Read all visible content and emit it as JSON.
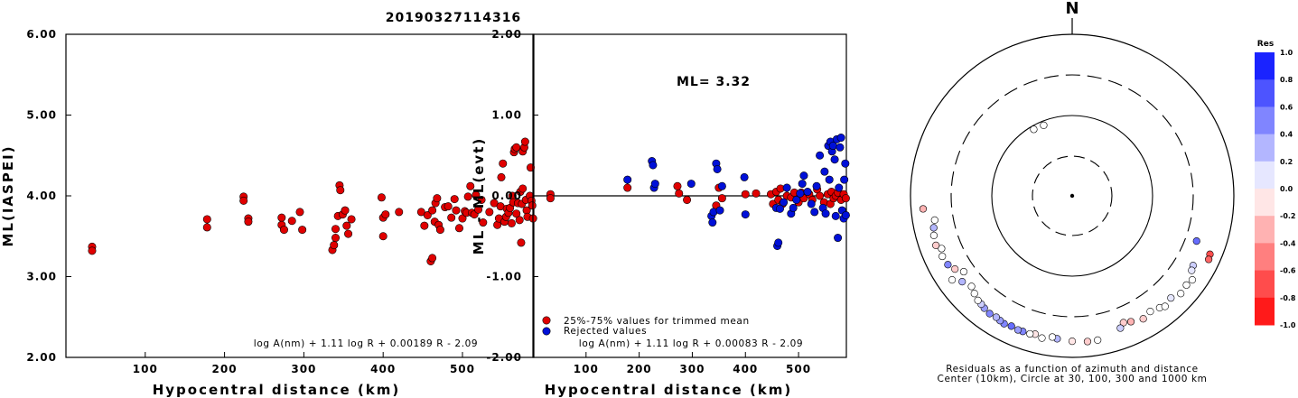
{
  "title": "20190327114316",
  "colors": {
    "accepted": "#e00000",
    "rejected": "#0010d8",
    "axis": "#000000"
  },
  "chart_data": [
    {
      "type": "scatter",
      "xlabel": "Hypocentral distance (km)",
      "ylabel": "ML(IASPEI)",
      "xlim": [
        0,
        590
      ],
      "ylim": [
        2.0,
        6.0
      ],
      "x_ticks": [
        100,
        200,
        300,
        400,
        500
      ],
      "x_tick_labels": [
        "100",
        "200",
        "300",
        "400",
        "500"
      ],
      "y_ticks": [
        2,
        3,
        4,
        5,
        6
      ],
      "y_tick_labels": [
        "2.00",
        "3.00",
        "4.00",
        "5.00",
        "6.00"
      ],
      "formula": "log A(nm) + 1.11 log R + 0.00189 R - 2.09",
      "series": [
        {
          "points": [
            [
              33,
              3.37
            ],
            [
              33,
              3.32
            ],
            [
              178,
              3.71
            ],
            [
              178,
              3.61
            ],
            [
              224,
              3.99
            ],
            [
              224,
              3.94
            ],
            [
              230,
              3.72
            ],
            [
              230,
              3.68
            ],
            [
              272,
              3.73
            ],
            [
              272,
              3.64
            ],
            [
              275,
              3.58
            ],
            [
              285,
              3.69
            ],
            [
              295,
              3.8
            ],
            [
              298,
              3.58
            ],
            [
              336,
              3.33
            ],
            [
              338,
              3.39
            ],
            [
              340,
              3.48
            ],
            [
              340,
              3.59
            ],
            [
              343,
              3.75
            ],
            [
              345,
              4.13
            ],
            [
              346,
              4.07
            ],
            [
              349,
              3.77
            ],
            [
              352,
              3.82
            ],
            [
              354,
              3.63
            ],
            [
              356,
              3.53
            ],
            [
              360,
              3.71
            ],
            [
              398,
              3.98
            ],
            [
              400,
              3.5
            ],
            [
              400,
              3.73
            ],
            [
              403,
              3.77
            ],
            [
              420,
              3.8
            ],
            [
              448,
              3.8
            ],
            [
              452,
              3.63
            ],
            [
              456,
              3.76
            ],
            [
              460,
              3.19
            ],
            [
              462,
              3.23
            ],
            [
              462,
              3.82
            ],
            [
              465,
              3.68
            ],
            [
              466,
              3.91
            ],
            [
              468,
              3.97
            ],
            [
              470,
              3.64
            ],
            [
              472,
              3.58
            ],
            [
              478,
              3.86
            ],
            [
              482,
              3.87
            ],
            [
              486,
              3.73
            ],
            [
              490,
              3.96
            ],
            [
              492,
              3.82
            ],
            [
              496,
              3.6
            ],
            [
              500,
              3.72
            ],
            [
              503,
              3.81
            ],
            [
              505,
              3.79
            ],
            [
              507,
              3.99
            ],
            [
              510,
              4.12
            ],
            [
              512,
              3.79
            ],
            [
              515,
              3.77
            ],
            [
              517,
              4.01
            ],
            [
              520,
              3.83
            ],
            [
              524,
              3.95
            ],
            [
              526,
              3.67
            ],
            [
              534,
              3.8
            ],
            [
              540,
              3.91
            ],
            [
              544,
              3.64
            ],
            [
              546,
              3.72
            ],
            [
              548,
              3.87
            ],
            [
              549,
              4.23
            ],
            [
              551,
              4.4
            ],
            [
              553,
              3.68
            ],
            [
              555,
              3.74
            ],
            [
              556,
              3.84
            ],
            [
              558,
              3.79
            ],
            [
              560,
              3.85
            ],
            [
              562,
              3.66
            ],
            [
              563,
              4.0
            ],
            [
              564,
              3.92
            ],
            [
              565,
              4.54
            ],
            [
              566,
              4.58
            ],
            [
              568,
              4.6
            ],
            [
              568,
              3.78
            ],
            [
              570,
              3.91
            ],
            [
              572,
              3.7
            ],
            [
              573,
              4.05
            ],
            [
              574,
              3.42
            ],
            [
              575,
              3.9
            ],
            [
              576,
              4.09
            ],
            [
              576,
              4.55
            ],
            [
              578,
              4.6
            ],
            [
              579,
              4.67
            ],
            [
              580,
              3.95
            ],
            [
              581,
              3.82
            ],
            [
              582,
              3.74
            ],
            [
              585,
              4.0
            ],
            [
              586,
              4.35
            ],
            [
              587,
              3.94
            ],
            [
              588,
              3.88
            ],
            [
              589,
              3.72
            ]
          ]
        }
      ]
    },
    {
      "type": "scatter",
      "xlabel": "Hypocentral distance (km)",
      "ylabel": "ML - ML(evt)",
      "xlim": [
        0,
        590
      ],
      "ylim": [
        -2.0,
        2.0
      ],
      "x_ticks": [
        100,
        200,
        300,
        400,
        500
      ],
      "x_tick_labels": [
        "100",
        "200",
        "300",
        "400",
        "500"
      ],
      "y_ticks": [
        -2,
        -1,
        0,
        1,
        2
      ],
      "y_tick_labels": [
        "-2.00",
        "-1.00",
        "0.00",
        "1.00",
        "2.00"
      ],
      "annotation": "ML= 3.32",
      "formula": "log A(nm) + 1.11 log R + 0.00083 R - 2.09",
      "series": [
        {
          "name": "25%-75% values for trimmed mean",
          "color": "#e00000",
          "points": [
            [
              33,
              0.02
            ],
            [
              33,
              -0.03
            ],
            [
              178,
              0.1
            ],
            [
              272,
              0.12
            ],
            [
              275,
              0.03
            ],
            [
              290,
              -0.05
            ],
            [
              345,
              -0.12
            ],
            [
              350,
              0.1
            ],
            [
              356,
              -0.03
            ],
            [
              400,
              0.02
            ],
            [
              420,
              0.03
            ],
            [
              448,
              0.02
            ],
            [
              452,
              -0.1
            ],
            [
              458,
              0.05
            ],
            [
              462,
              -0.05
            ],
            [
              466,
              0.09
            ],
            [
              470,
              -0.1
            ],
            [
              478,
              0.0
            ],
            [
              486,
              -0.02
            ],
            [
              492,
              0.04
            ],
            [
              500,
              -0.08
            ],
            [
              505,
              0.04
            ],
            [
              510,
              -0.03
            ],
            [
              520,
              0.02
            ],
            [
              526,
              -0.05
            ],
            [
              535,
              0.08
            ],
            [
              540,
              0.0
            ],
            [
              548,
              -0.08
            ],
            [
              555,
              0.02
            ],
            [
              560,
              -0.1
            ],
            [
              562,
              0.05
            ],
            [
              566,
              -0.03
            ],
            [
              570,
              0.0
            ],
            [
              574,
              0.04
            ],
            [
              580,
              -0.05
            ],
            [
              585,
              0.02
            ],
            [
              589,
              -0.03
            ]
          ]
        },
        {
          "name": "Rejected values",
          "color": "#0010d8",
          "points": [
            [
              178,
              0.2
            ],
            [
              224,
              0.43
            ],
            [
              226,
              0.38
            ],
            [
              228,
              0.1
            ],
            [
              230,
              0.15
            ],
            [
              298,
              0.15
            ],
            [
              336,
              -0.25
            ],
            [
              338,
              -0.33
            ],
            [
              340,
              -0.2
            ],
            [
              345,
              0.4
            ],
            [
              347,
              0.33
            ],
            [
              352,
              -0.18
            ],
            [
              356,
              0.12
            ],
            [
              398,
              0.23
            ],
            [
              400,
              -0.23
            ],
            [
              458,
              -0.15
            ],
            [
              460,
              -0.62
            ],
            [
              462,
              -0.58
            ],
            [
              465,
              -0.16
            ],
            [
              472,
              -0.08
            ],
            [
              478,
              0.1
            ],
            [
              486,
              -0.22
            ],
            [
              490,
              -0.15
            ],
            [
              496,
              -0.05
            ],
            [
              503,
              0.03
            ],
            [
              507,
              0.15
            ],
            [
              510,
              0.25
            ],
            [
              517,
              0.05
            ],
            [
              524,
              -0.1
            ],
            [
              530,
              -0.2
            ],
            [
              534,
              0.12
            ],
            [
              540,
              0.5
            ],
            [
              546,
              -0.15
            ],
            [
              549,
              0.3
            ],
            [
              551,
              -0.22
            ],
            [
              556,
              0.62
            ],
            [
              558,
              0.2
            ],
            [
              560,
              0.67
            ],
            [
              563,
              0.55
            ],
            [
              565,
              0.62
            ],
            [
              568,
              0.45
            ],
            [
              570,
              -0.25
            ],
            [
              572,
              0.7
            ],
            [
              574,
              -0.52
            ],
            [
              576,
              0.1
            ],
            [
              578,
              0.6
            ],
            [
              580,
              0.72
            ],
            [
              582,
              -0.18
            ],
            [
              585,
              -0.28
            ],
            [
              586,
              0.2
            ],
            [
              588,
              0.4
            ],
            [
              589,
              -0.24
            ]
          ]
        }
      ]
    },
    {
      "type": "polar-scatter",
      "north_label": "N",
      "caption_line1": "Residuals as a function of azimuth and distance",
      "caption_line2": "Center (10km), Circle at 30, 100, 300 and 1000 km",
      "rings_km": [
        30,
        100,
        300,
        1000
      ],
      "colorbar_title": "Res",
      "colorbar_ticks": [
        "1.0",
        "0.8",
        "0.6",
        "0.4",
        "0.2",
        "0.0",
        "-0.2",
        "-0.4",
        "-0.6",
        "-0.8",
        "-1.0"
      ],
      "stations": [
        {
          "az": 330,
          "dist_km": 90,
          "res": 0.0
        },
        {
          "az": 338,
          "dist_km": 88,
          "res": 0.0
        },
        {
          "az": 110,
          "dist_km": 420,
          "res": 0.6
        },
        {
          "az": 113,
          "dist_km": 700,
          "res": -0.7
        },
        {
          "az": 115,
          "dist_km": 720,
          "res": -0.6
        },
        {
          "az": 120,
          "dist_km": 520,
          "res": 0.2
        },
        {
          "az": 122,
          "dist_km": 540,
          "res": 0.1
        },
        {
          "az": 125,
          "dist_km": 640,
          "res": 0.0
        },
        {
          "az": 128,
          "dist_km": 610,
          "res": 0.0
        },
        {
          "az": 132,
          "dist_km": 630,
          "res": 0.0
        },
        {
          "az": 136,
          "dist_km": 560,
          "res": 0.1
        },
        {
          "az": 142,
          "dist_km": 560,
          "res": 0.0
        },
        {
          "az": 146,
          "dist_km": 520,
          "res": 0.0
        },
        {
          "az": 150,
          "dist_km": 560,
          "res": -0.2
        },
        {
          "az": 155,
          "dist_km": 510,
          "res": -0.3
        },
        {
          "az": 158,
          "dist_km": 480,
          "res": -0.2
        },
        {
          "az": 160,
          "dist_km": 540,
          "res": 0.2
        },
        {
          "az": 170,
          "dist_km": 640,
          "res": 0.0
        },
        {
          "az": 174,
          "dist_km": 640,
          "res": -0.2
        },
        {
          "az": 180,
          "dist_km": 620,
          "res": -0.1
        },
        {
          "az": 186,
          "dist_km": 590,
          "res": 0.3
        },
        {
          "az": 188,
          "dist_km": 570,
          "res": 0.0
        },
        {
          "az": 192,
          "dist_km": 620,
          "res": 0.0
        },
        {
          "az": 195,
          "dist_km": 580,
          "res": -0.1
        },
        {
          "az": 197,
          "dist_km": 600,
          "res": 0.0
        },
        {
          "az": 200,
          "dist_km": 600,
          "res": 0.5
        },
        {
          "az": 202,
          "dist_km": 605,
          "res": 0.4
        },
        {
          "az": 205,
          "dist_km": 590,
          "res": 0.6
        },
        {
          "az": 208,
          "dist_km": 610,
          "res": 0.5
        },
        {
          "az": 210,
          "dist_km": 595,
          "res": 0.4
        },
        {
          "az": 212,
          "dist_km": 580,
          "res": 0.3
        },
        {
          "az": 215,
          "dist_km": 590,
          "res": 0.5
        },
        {
          "az": 218,
          "dist_km": 570,
          "res": 0.4
        },
        {
          "az": 220,
          "dist_km": 550,
          "res": 0.2
        },
        {
          "az": 222,
          "dist_km": 540,
          "res": 0.0
        },
        {
          "az": 225,
          "dist_km": 500,
          "res": 0.0
        },
        {
          "az": 228,
          "dist_km": 460,
          "res": 0.0
        },
        {
          "az": 232,
          "dist_km": 520,
          "res": 0.3
        },
        {
          "az": 235,
          "dist_km": 420,
          "res": 0.0
        },
        {
          "az": 238,
          "dist_km": 500,
          "res": -0.2
        },
        {
          "az": 241,
          "dist_km": 560,
          "res": 0.5
        },
        {
          "az": 245,
          "dist_km": 580,
          "res": 0.0
        },
        {
          "az": 248,
          "dist_km": 540,
          "res": 0.0
        },
        {
          "az": 250,
          "dist_km": 610,
          "res": -0.2
        },
        {
          "az": 254,
          "dist_km": 590,
          "res": 0.0
        },
        {
          "az": 257,
          "dist_km": 560,
          "res": 0.3
        },
        {
          "az": 260,
          "dist_km": 520,
          "res": 0.0
        },
        {
          "az": 265,
          "dist_km": 700,
          "res": -0.3
        },
        {
          "az": 235,
          "dist_km": 640,
          "res": 0.0
        },
        {
          "az": 140,
          "dist_km": 600,
          "res": 0.0
        }
      ]
    }
  ]
}
